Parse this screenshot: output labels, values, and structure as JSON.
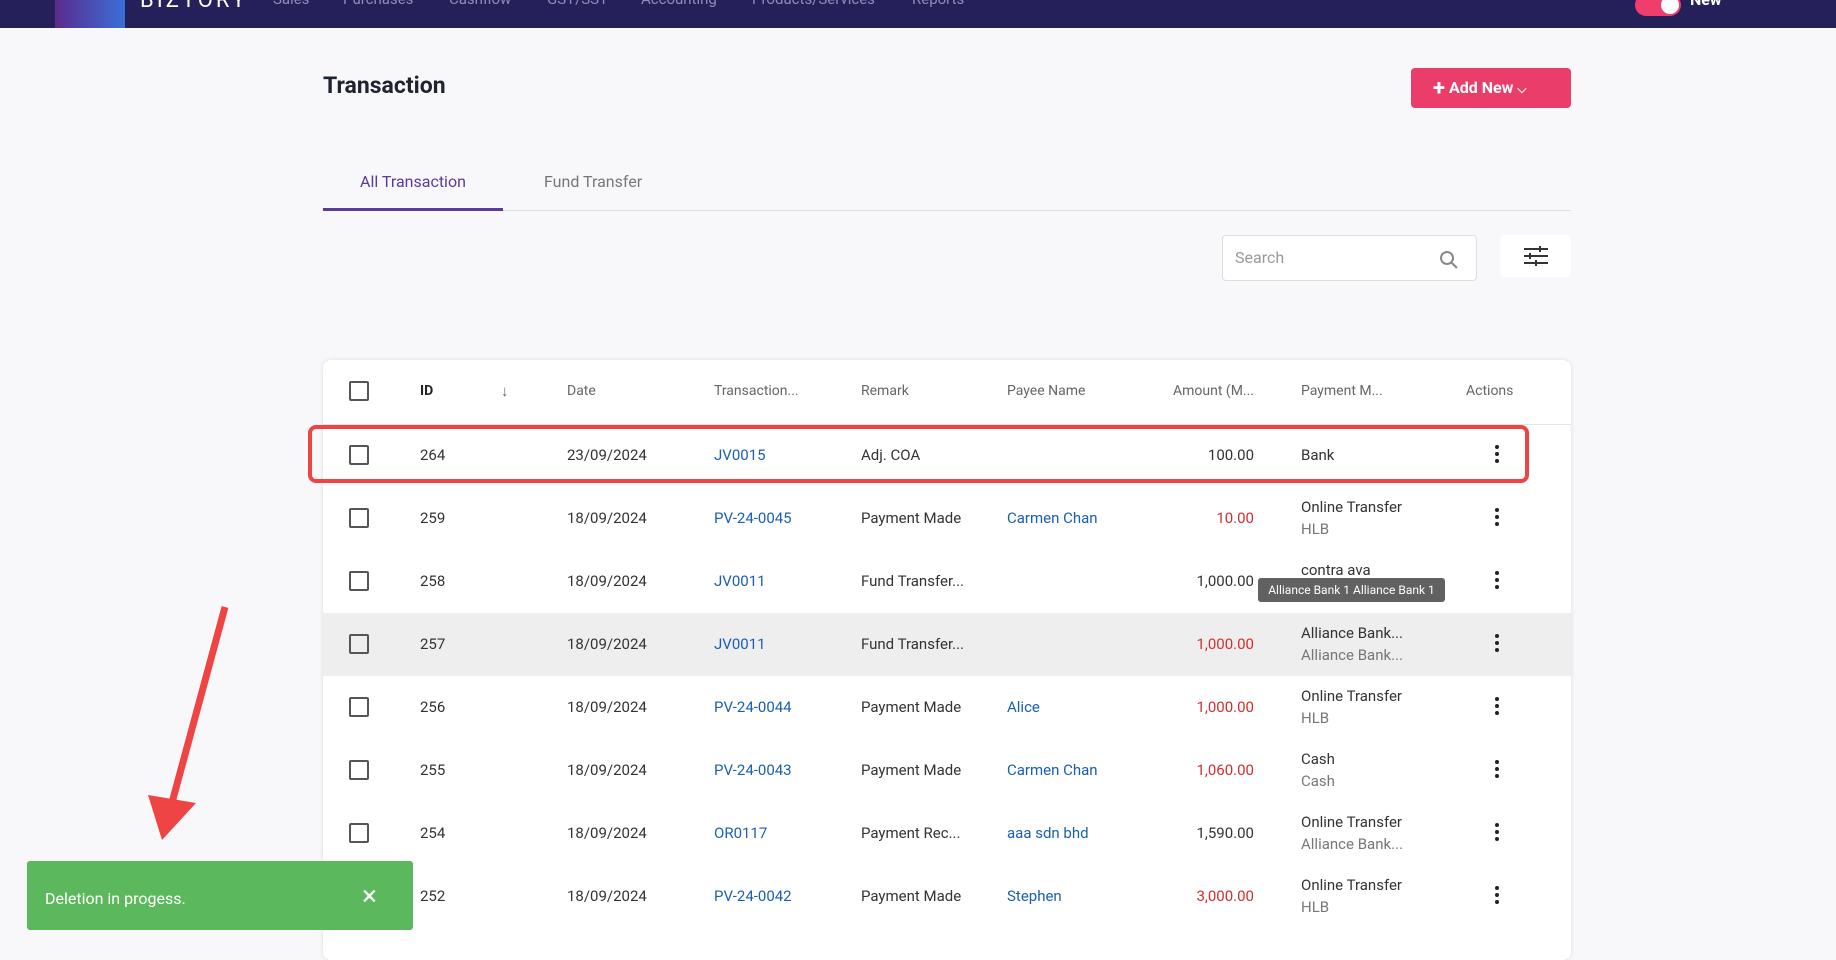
{
  "nav": {
    "brand": "BIZTORY",
    "items": [
      "Sales",
      "Purchases",
      "Cashflow",
      "GST/SST",
      "Accounting",
      "Products/Services",
      "Reports"
    ],
    "toggle_label": "New"
  },
  "header": {
    "title": "Transaction",
    "add_button": "Add New"
  },
  "tabs": [
    "All Transaction",
    "Fund Transfer"
  ],
  "search": {
    "placeholder": "Search"
  },
  "table": {
    "columns": [
      "ID",
      "Date",
      "Transaction...",
      "Remark",
      "Payee Name",
      "Amount (M...",
      "Payment M...",
      "Actions"
    ],
    "rows": [
      {
        "id": "264",
        "date": "23/09/2024",
        "transaction": "JV0015",
        "remark": "Adj. COA",
        "payee": "",
        "amount": "100.00",
        "amount_color": "#333333",
        "payment": [
          "Bank",
          ""
        ]
      },
      {
        "id": "259",
        "date": "18/09/2024",
        "transaction": "PV-24-0045",
        "remark": "Payment Made",
        "payee": "Carmen Chan",
        "amount": "10.00",
        "amount_color": "#d32f2f",
        "payment": [
          "Online Transfer",
          "HLB"
        ]
      },
      {
        "id": "258",
        "date": "18/09/2024",
        "transaction": "JV0011",
        "remark": "Fund Transfer...",
        "payee": "",
        "amount": "1,000.00",
        "amount_color": "#333333",
        "payment": [
          "contra ava",
          ""
        ]
      },
      {
        "id": "257",
        "date": "18/09/2024",
        "transaction": "JV0011",
        "remark": "Fund Transfer...",
        "payee": "",
        "amount": "1,000.00",
        "amount_color": "#d32f2f",
        "payment": [
          "Alliance Bank...",
          "Alliance Bank..."
        ]
      },
      {
        "id": "256",
        "date": "18/09/2024",
        "transaction": "PV-24-0044",
        "remark": "Payment Made",
        "payee": "Alice",
        "amount": "1,000.00",
        "amount_color": "#d32f2f",
        "payment": [
          "Online Transfer",
          "HLB"
        ]
      },
      {
        "id": "255",
        "date": "18/09/2024",
        "transaction": "PV-24-0043",
        "remark": "Payment Made",
        "payee": "Carmen Chan",
        "amount": "1,060.00",
        "amount_color": "#d32f2f",
        "payment": [
          "Cash",
          "Cash"
        ]
      },
      {
        "id": "254",
        "date": "18/09/2024",
        "transaction": "OR0117",
        "remark": "Payment Rec...",
        "payee": "aaa sdn bhd",
        "amount": "1,590.00",
        "amount_color": "#333333",
        "payment": [
          "Online Transfer",
          "Alliance Bank..."
        ]
      },
      {
        "id": "252",
        "date": "18/09/2024",
        "transaction": "PV-24-0042",
        "remark": "Payment Made",
        "payee": "Stephen",
        "amount": "3,000.00",
        "amount_color": "#d32f2f",
        "payment": [
          "Online Transfer",
          "HLB"
        ]
      }
    ]
  },
  "tooltip": "Alliance Bank 1 Alliance Bank 1",
  "toast": "Deletion in progess."
}
